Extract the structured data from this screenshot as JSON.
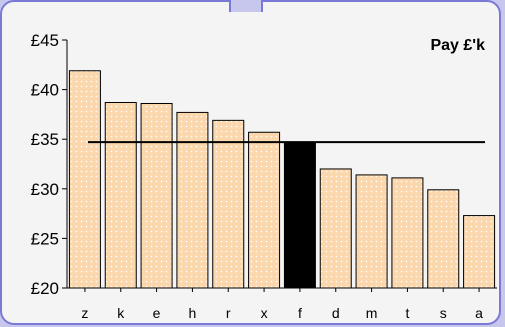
{
  "chart_data": {
    "type": "bar",
    "title": "Pay £'k",
    "categories": [
      "z",
      "k",
      "e",
      "h",
      "r",
      "x",
      "f",
      "d",
      "m",
      "t",
      "s",
      "a"
    ],
    "values": [
      41.9,
      38.7,
      38.6,
      37.7,
      36.9,
      35.7,
      34.6,
      32.0,
      31.4,
      31.1,
      29.9,
      27.3
    ],
    "highlight_category": "f",
    "reference_line": 34.7,
    "ylim": [
      20,
      45
    ],
    "yticks": [
      20,
      25,
      30,
      35,
      40,
      45
    ],
    "ytick_labels": [
      "£20",
      "£25",
      "£30",
      "£35",
      "£40",
      "£45"
    ],
    "xlabel": "",
    "ylabel": "",
    "grid": false,
    "colors": {
      "bar_fill": "#fbd7ad",
      "bar_dots": "#ffffff",
      "bar_stroke": "#000000",
      "highlight_fill": "#000000",
      "reference_line": "#000000",
      "panel_background": "#f4f4f4",
      "panel_border": "#7a7ad6",
      "page_background": "#c7c7ee"
    }
  }
}
